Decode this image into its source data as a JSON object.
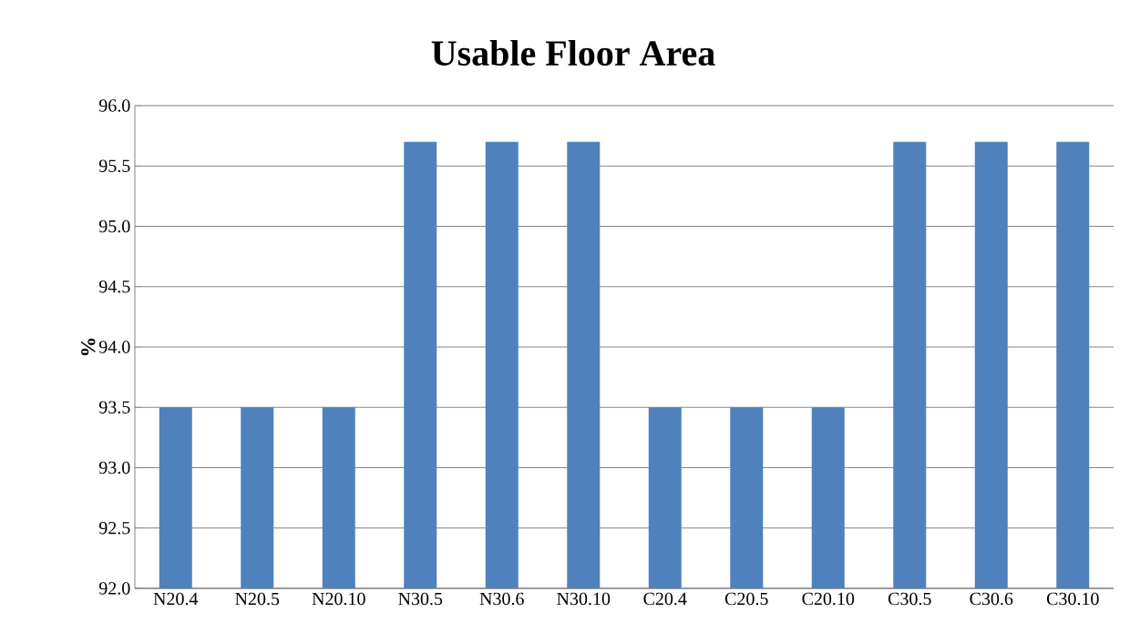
{
  "chart_data": {
    "type": "bar",
    "title": "Usable Floor Area",
    "ylabel": "%",
    "categories": [
      "N20.4",
      "N20.5",
      "N20.10",
      "N30.5",
      "N30.6",
      "N30.10",
      "C20.4",
      "C20.5",
      "C20.10",
      "C30.5",
      "C30.6",
      "C30.10"
    ],
    "values": [
      93.5,
      93.5,
      93.5,
      95.7,
      95.7,
      95.7,
      93.5,
      93.5,
      93.5,
      95.7,
      95.7,
      95.7
    ],
    "color": "#4f81bd",
    "ylim": [
      92,
      96
    ],
    "yticks": [
      {
        "value": 92,
        "label": "92.0"
      },
      {
        "value": 92.5,
        "label": "92.5"
      },
      {
        "value": 93,
        "label": "93.0"
      },
      {
        "value": 93.5,
        "label": "93.5"
      },
      {
        "value": 94,
        "label": "94.0"
      },
      {
        "value": 94.5,
        "label": "94.5"
      },
      {
        "value": 95,
        "label": "95.0"
      },
      {
        "value": 95.5,
        "label": "95.5"
      },
      {
        "value": 96,
        "label": "96.0"
      }
    ],
    "grid": "y"
  }
}
